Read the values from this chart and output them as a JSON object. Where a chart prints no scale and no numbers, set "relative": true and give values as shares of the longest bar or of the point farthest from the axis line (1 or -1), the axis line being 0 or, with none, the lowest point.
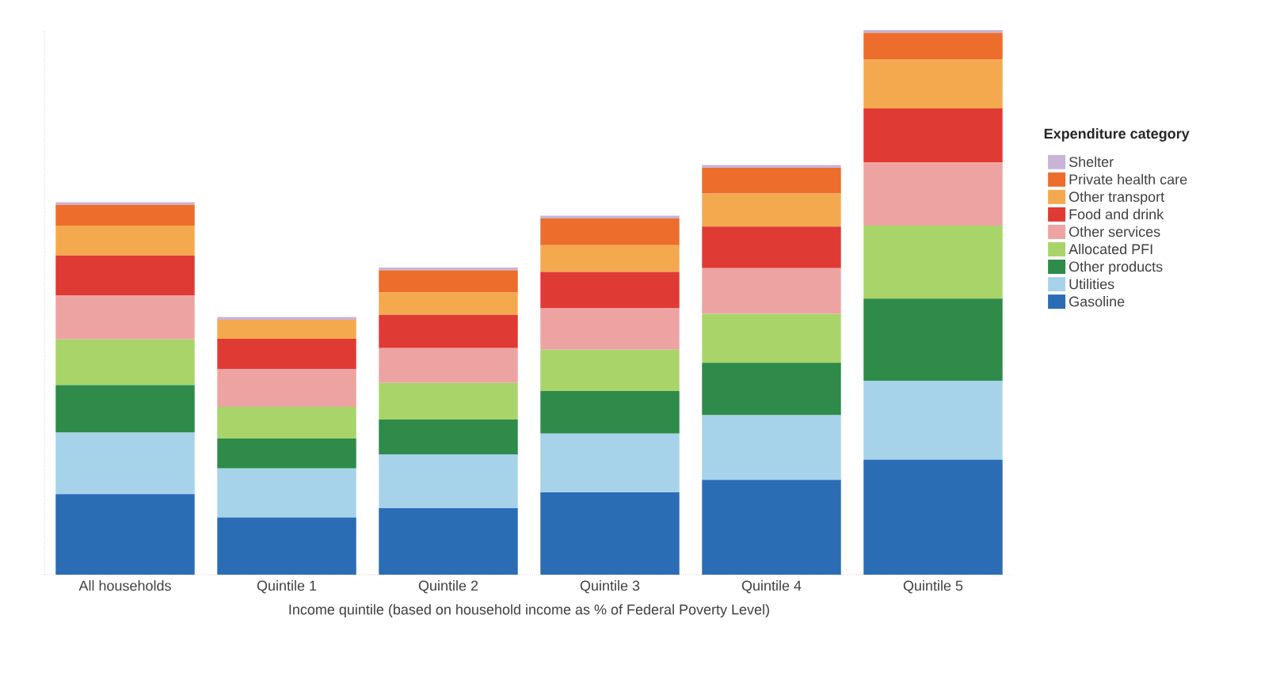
{
  "chart_data": {
    "type": "bar",
    "stacked": true,
    "relative": true,
    "xlabel": "Income quintile (based on household income as % of Federal Poverty Level)",
    "legend_title": "Expenditure category",
    "legend": "right",
    "categories": [
      "All households",
      "Quintile 1",
      "Quintile 2",
      "Quintile 3",
      "Quintile 4",
      "Quintile 5"
    ],
    "series": [
      {
        "name": "Gasoline",
        "color": "#2a6db5",
        "values": [
          0.148,
          0.105,
          0.122,
          0.151,
          0.174,
          0.211
        ]
      },
      {
        "name": "Utilities",
        "color": "#a6d3ea",
        "values": [
          0.113,
          0.09,
          0.099,
          0.108,
          0.119,
          0.145
        ]
      },
      {
        "name": "Other products",
        "color": "#2e8b4a",
        "values": [
          0.087,
          0.055,
          0.064,
          0.078,
          0.096,
          0.151
        ]
      },
      {
        "name": "Allocated PFI",
        "color": "#a9d46a",
        "values": [
          0.084,
          0.058,
          0.067,
          0.076,
          0.09,
          0.134
        ]
      },
      {
        "name": "Other services",
        "color": "#eea3a3",
        "values": [
          0.081,
          0.07,
          0.064,
          0.076,
          0.084,
          0.116
        ]
      },
      {
        "name": "Food and drink",
        "color": "#e03a35",
        "values": [
          0.073,
          0.055,
          0.061,
          0.067,
          0.076,
          0.099
        ]
      },
      {
        "name": "Other transport",
        "color": "#f5a94e",
        "values": [
          0.055,
          0.035,
          0.041,
          0.049,
          0.061,
          0.09
        ]
      },
      {
        "name": "Private health care",
        "color": "#ec6d2c",
        "values": [
          0.038,
          0.0,
          0.041,
          0.049,
          0.047,
          0.049
        ]
      },
      {
        "name": "Shelter",
        "color": "#c9b3d6",
        "values": [
          0.005,
          0.005,
          0.005,
          0.005,
          0.005,
          0.005
        ]
      }
    ]
  }
}
